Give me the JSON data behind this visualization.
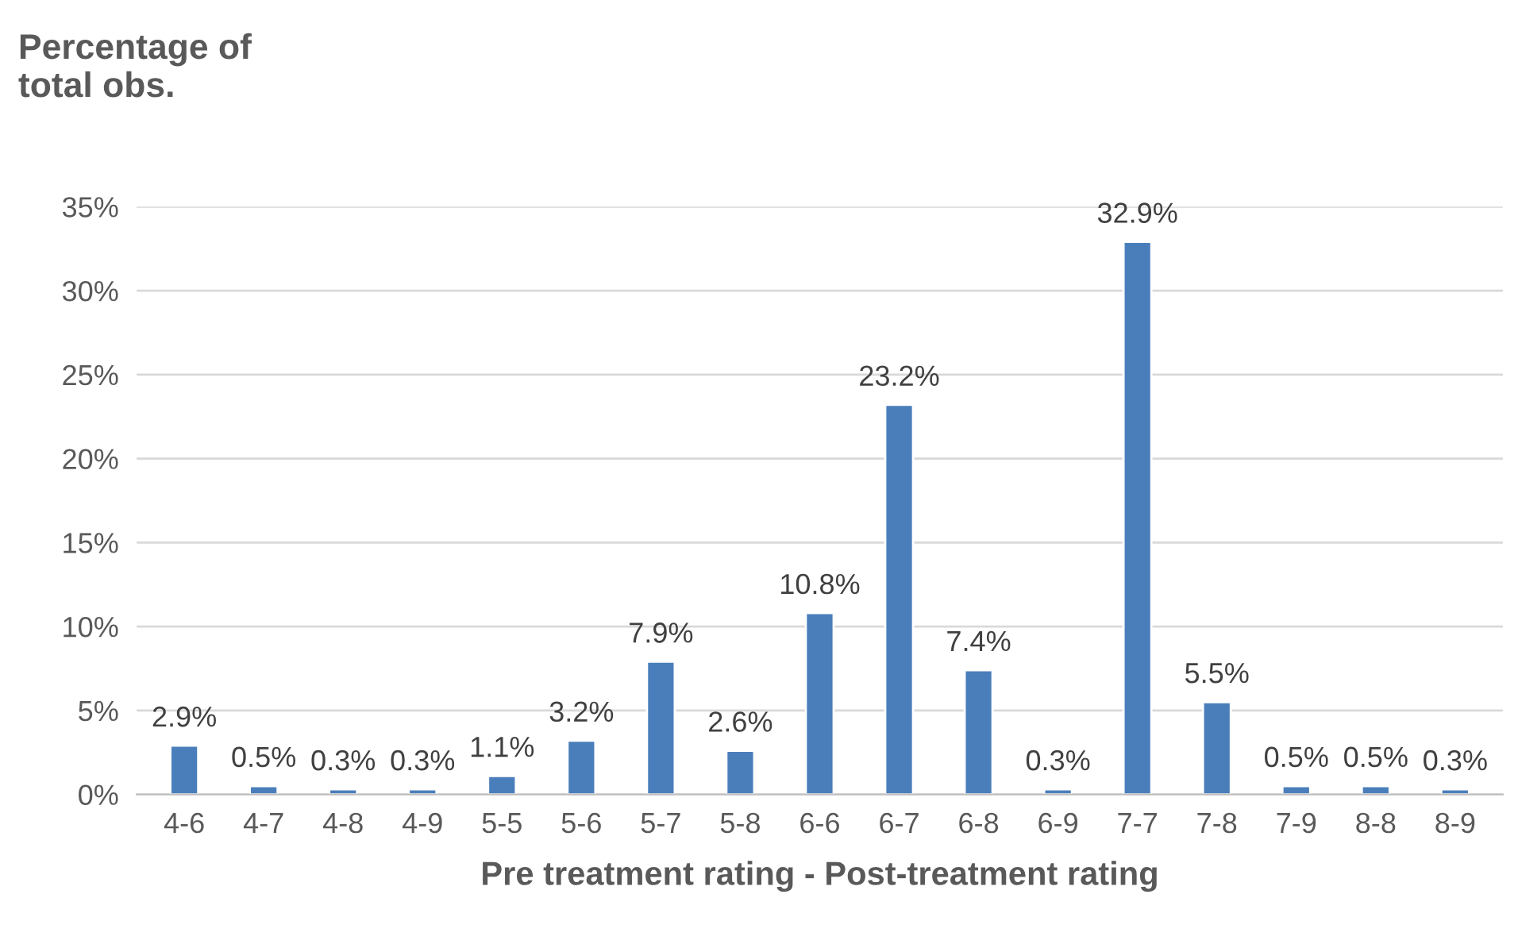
{
  "chart_data": {
    "type": "bar",
    "ylabel": "Percentage of\ntotal obs.",
    "xlabel": "Pre treatment rating - Post-treatment rating",
    "categories": [
      "4-6",
      "4-7",
      "4-8",
      "4-9",
      "5-5",
      "5-6",
      "5-7",
      "5-8",
      "6-6",
      "6-7",
      "6-8",
      "6-9",
      "7-7",
      "7-8",
      "7-9",
      "8-8",
      "8-9"
    ],
    "values": [
      2.9,
      0.5,
      0.3,
      0.3,
      1.1,
      3.2,
      7.9,
      2.6,
      10.8,
      23.2,
      7.4,
      0.3,
      32.9,
      5.5,
      0.5,
      0.5,
      0.3
    ],
    "value_labels": [
      "2.9%",
      "0.5%",
      "0.3%",
      "0.3%",
      "1.1%",
      "3.2%",
      "7.9%",
      "2.6%",
      "10.8%",
      "23.2%",
      "7.4%",
      "0.3%",
      "32.9%",
      "5.5%",
      "0.5%",
      "0.5%",
      "0.3%"
    ],
    "color": "#4a7ebb",
    "ylim": [
      0,
      35
    ],
    "yticks": [
      {
        "value": 0,
        "label": "0%"
      },
      {
        "value": 5,
        "label": "5%"
      },
      {
        "value": 10,
        "label": "10%"
      },
      {
        "value": 15,
        "label": "15%"
      },
      {
        "value": 20,
        "label": "20%"
      },
      {
        "value": 25,
        "label": "25%"
      },
      {
        "value": 30,
        "label": "30%"
      },
      {
        "value": 35,
        "label": "35%"
      }
    ],
    "grid": "y",
    "legend": false
  }
}
